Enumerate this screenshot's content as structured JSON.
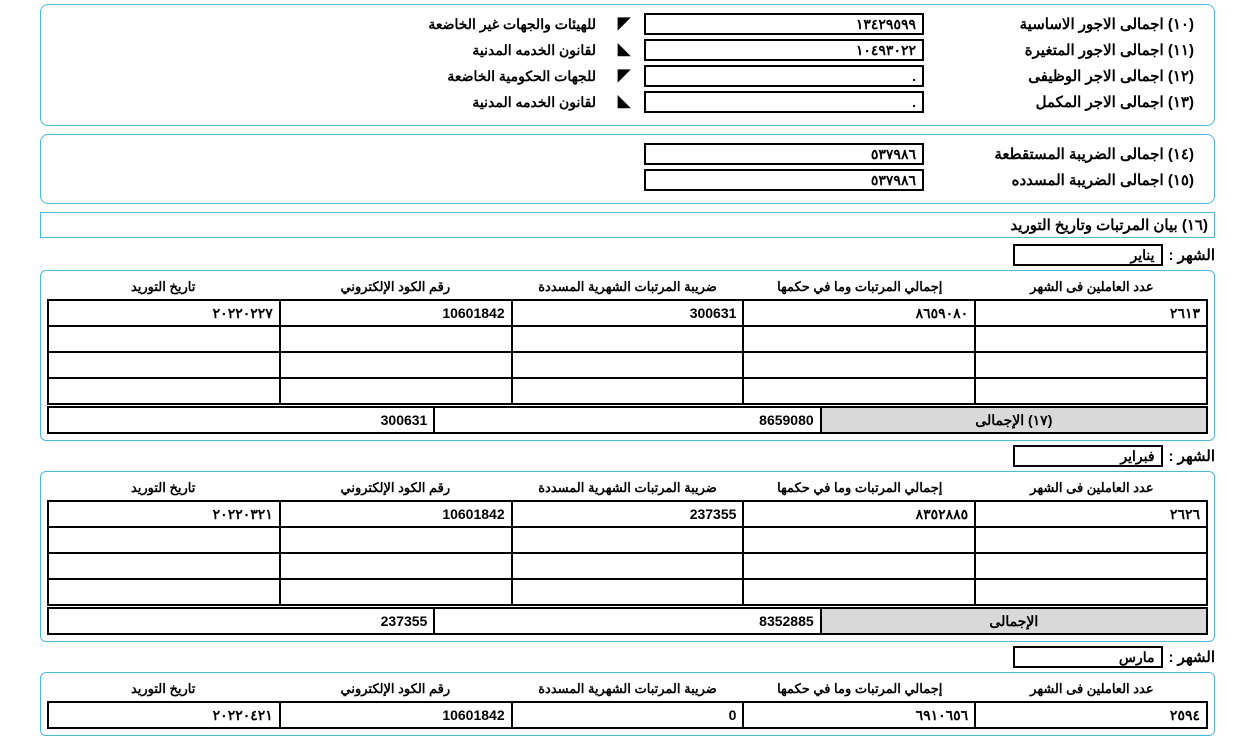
{
  "wages_section1": {
    "rows": [
      {
        "label": "(١٠) اجمالى الاجور الاساسية",
        "value": "١٣٤٢٩٥٩٩",
        "note": "للهيئات والجهات غير الخاضعة"
      },
      {
        "label": "(١١) اجمالى الاجور المتغيرة",
        "value": "١٠٤٩٣٠٢٢",
        "note": "لقانون الخدمه المدنية"
      },
      {
        "label": "(١٢) اجمالى الاجر الوظيفى",
        "value": ".",
        "note": "للجهات الحكومية الخاضعة"
      },
      {
        "label": "(١٣) اجمالى الاجر المكمل",
        "value": ".",
        "note": "لقانون الخدمه المدنية"
      }
    ]
  },
  "wages_section2": {
    "rows": [
      {
        "label": "(١٤) اجمالى الضريبة المستقطعة",
        "value": "٥٣٧٩٨٦"
      },
      {
        "label": "(١٥) اجمالى الضريبة المسدده",
        "value": "٥٣٧٩٨٦"
      }
    ]
  },
  "section16_title": "(١٦) بيان المرتبات وتاريخ التوريد",
  "month_label": "الشهر :",
  "table_headers": {
    "c1": "عدد العاملين فى الشهر",
    "c2": "إجمالي المرتبات وما في حكمها",
    "c3": "ضريبة المرتبات الشهرية المسددة",
    "c4": "رقم الكود الإلكتروني",
    "c5": "تاريخ التوريد"
  },
  "months": [
    {
      "name": "يناير",
      "rows": [
        {
          "c1": "٢٦١٣",
          "c2": "٨٦٥٩٠٨٠",
          "c3": "300631",
          "c4": "10601842",
          "c5": "٢٠٢٢٠٢٢٧"
        },
        {
          "c1": "",
          "c2": "",
          "c3": "",
          "c4": "",
          "c5": ""
        },
        {
          "c1": "",
          "c2": "",
          "c3": "",
          "c4": "",
          "c5": ""
        },
        {
          "c1": "",
          "c2": "",
          "c3": "",
          "c4": "",
          "c5": ""
        }
      ],
      "total_label": "(١٧) الإجمالى",
      "total_c2": "8659080",
      "total_c3": "300631"
    },
    {
      "name": "فبراير",
      "rows": [
        {
          "c1": "٢٦٢٦",
          "c2": "٨٣٥٢٨٨٥",
          "c3": "237355",
          "c4": "10601842",
          "c5": "٢٠٢٢٠٣٢١"
        },
        {
          "c1": "",
          "c2": "",
          "c3": "",
          "c4": "",
          "c5": ""
        },
        {
          "c1": "",
          "c2": "",
          "c3": "",
          "c4": "",
          "c5": ""
        },
        {
          "c1": "",
          "c2": "",
          "c3": "",
          "c4": "",
          "c5": ""
        }
      ],
      "total_label": "الإجمالى",
      "total_c2": "8352885",
      "total_c3": "237355"
    },
    {
      "name": "مارس",
      "rows": [
        {
          "c1": "٢٥٩٤",
          "c2": "٦٩١٠٦٥٦",
          "c3": "0",
          "c4": "10601842",
          "c5": "٢٠٢٢٠٤٢١"
        }
      ],
      "total_label": "",
      "total_c2": "",
      "total_c3": ""
    }
  ]
}
